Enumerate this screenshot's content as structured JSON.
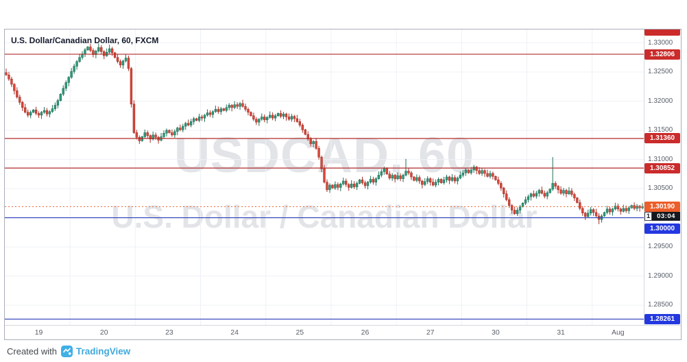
{
  "header": {
    "title": "U.S. Dollar/Canadian Dollar, 60, FXCM"
  },
  "watermark": {
    "line1": "USDCAD, 60",
    "line2": "U.S. Dollar / Canadian Dollar"
  },
  "footer": {
    "created_with": "Created with",
    "brand": "TradingView",
    "brand_color": "#3fa9dc",
    "logo_color": "#3fb0e6"
  },
  "last_price": {
    "price": 1.3019,
    "badge": "1.30190",
    "color": "#ec5e2a",
    "countdown_prefix": "1",
    "countdown": "03:04"
  },
  "levels": [
    {
      "name": "resistance-1",
      "price": 1.32806,
      "badge": "1.32806",
      "line_color": "#b22a2a",
      "badge_color": "#cb2b2b"
    },
    {
      "name": "resistance-2",
      "price": 1.3136,
      "badge": "1.31360",
      "line_color": "#b22a2a",
      "badge_color": "#cb2b2b"
    },
    {
      "name": "resistance-3",
      "price": 1.30852,
      "badge": "1.30852",
      "line_color": "#b22a2a",
      "badge_color": "#cb2b2b"
    },
    {
      "name": "support-1",
      "price": 1.3,
      "badge": "1.30000",
      "line_color": "#2a3bb7",
      "badge_color": "#2438e0",
      "badge_dy": 16
    },
    {
      "name": "support-2",
      "price": 1.28261,
      "badge": "1.28261",
      "line_color": "#2a3bb7",
      "badge_color": "#2438e0"
    }
  ],
  "price_axis": {
    "ticks": [
      "1.33000",
      "1.32500",
      "1.32000",
      "1.31500",
      "1.31000",
      "1.30500",
      "1.30000",
      "1.29500",
      "1.29000",
      "1.28500"
    ],
    "top_clipped_badge_color": "#cb2b2b"
  },
  "time_axis": {
    "labels": [
      {
        "text": "19",
        "i": 12
      },
      {
        "text": "20",
        "i": 36
      },
      {
        "text": "23",
        "i": 60
      },
      {
        "text": "24",
        "i": 84
      },
      {
        "text": "25",
        "i": 108
      },
      {
        "text": "26",
        "i": 132
      },
      {
        "text": "27",
        "i": 156
      },
      {
        "text": "30",
        "i": 180
      },
      {
        "text": "31",
        "i": 204
      },
      {
        "text": "Aug",
        "i": 225
      }
    ]
  },
  "chart_data": {
    "type": "candlestick",
    "title": "U.S. Dollar/Canadian Dollar, 60, FXCM",
    "symbol": "USDCAD",
    "interval": "60",
    "exchange": "FXCM",
    "price_range": [
      1.2816,
      1.3323
    ],
    "first_open": 1.3249,
    "closes": [
      1.3245,
      1.3238,
      1.3229,
      1.3218,
      1.3207,
      1.3198,
      1.3189,
      1.3181,
      1.3176,
      1.3181,
      1.3185,
      1.3179,
      1.3176,
      1.3181,
      1.3184,
      1.3178,
      1.3182,
      1.3187,
      1.3193,
      1.3201,
      1.3212,
      1.3222,
      1.3232,
      1.3241,
      1.3251,
      1.326,
      1.3268,
      1.3275,
      1.3281,
      1.3288,
      1.3293,
      1.3287,
      1.328,
      1.3286,
      1.3292,
      1.3285,
      1.3278,
      1.3284,
      1.329,
      1.3283,
      1.3275,
      1.3268,
      1.3262,
      1.3269,
      1.3274,
      1.3256,
      1.3195,
      1.3146,
      1.3138,
      1.3132,
      1.3139,
      1.3146,
      1.3141,
      1.3135,
      1.3142,
      1.3138,
      1.3133,
      1.3139,
      1.3145,
      1.315,
      1.3146,
      1.3142,
      1.3148,
      1.3154,
      1.3151,
      1.3157,
      1.3162,
      1.3159,
      1.3165,
      1.317,
      1.3167,
      1.3173,
      1.3171,
      1.3176,
      1.318,
      1.3177,
      1.3182,
      1.3186,
      1.3182,
      1.3187,
      1.3184,
      1.3189,
      1.3193,
      1.3189,
      1.3194,
      1.3191,
      1.3196,
      1.3191,
      1.3186,
      1.3181,
      1.3175,
      1.3169,
      1.3164,
      1.3169,
      1.3173,
      1.3168,
      1.3172,
      1.3176,
      1.3171,
      1.3175,
      1.3179,
      1.3174,
      1.3178,
      1.3173,
      1.3169,
      1.3174,
      1.317,
      1.3165,
      1.3159,
      1.3151,
      1.3143,
      1.3135,
      1.3127,
      1.3131,
      1.3119,
      1.3104,
      1.3084,
      1.3061,
      1.3048,
      1.3056,
      1.3051,
      1.3057,
      1.3052,
      1.3058,
      1.3063,
      1.3057,
      1.3052,
      1.3058,
      1.3053,
      1.3059,
      1.3065,
      1.306,
      1.3055,
      1.3061,
      1.3066,
      1.3061,
      1.3067,
      1.3073,
      1.3079,
      1.3085,
      1.3075,
      1.3068,
      1.3073,
      1.3067,
      1.3072,
      1.3067,
      1.3073,
      1.308,
      1.3077,
      1.307,
      1.3064,
      1.3069,
      1.3063,
      1.3057,
      1.3062,
      1.3067,
      1.3061,
      1.3056,
      1.3061,
      1.3066,
      1.306,
      1.3065,
      1.307,
      1.3064,
      1.3069,
      1.3063,
      1.3068,
      1.3073,
      1.3077,
      1.3082,
      1.3077,
      1.3082,
      1.3087,
      1.3081,
      1.3076,
      1.3081,
      1.3076,
      1.3071,
      1.3076,
      1.3071,
      1.3065,
      1.3059,
      1.3051,
      1.3041,
      1.3031,
      1.3021,
      1.3013,
      1.3007,
      1.3013,
      1.3019,
      1.3025,
      1.3031,
      1.3036,
      1.3041,
      1.3037,
      1.3042,
      1.3047,
      1.3042,
      1.3037,
      1.3043,
      1.3049,
      1.3059,
      1.3054,
      1.3048,
      1.3042,
      1.3047,
      1.3041,
      1.3046,
      1.304,
      1.3034,
      1.3026,
      1.3016,
      1.3008,
      1.3002,
      1.3008,
      1.3014,
      1.3009,
      1.3003,
      1.2997,
      1.3003,
      1.3009,
      1.3015,
      1.301,
      1.3015,
      1.302,
      1.3015,
      1.3011,
      1.3016,
      1.3012,
      1.3017,
      1.3021,
      1.3016,
      1.302,
      1.3017,
      1.3019
    ],
    "wick_overrides": {
      "0": {
        "h": 1.3256
      },
      "34": {
        "h": 1.3299
      },
      "38": {
        "h": 1.3297
      },
      "147": {
        "h": 1.3101
      },
      "188": {
        "l": 1.3003
      },
      "201": {
        "h": 1.3104
      },
      "213": {
        "l": 1.2996
      },
      "218": {
        "l": 1.2989
      }
    },
    "day_boundaries": [
      24,
      48,
      72,
      96,
      120,
      144,
      168,
      192,
      216
    ],
    "colors": {
      "up": "#2f9c7c",
      "up_dark": "#1e6e57",
      "down": "#d9483b",
      "down_dark": "#a62f26",
      "grid": "#eef1f5"
    }
  }
}
